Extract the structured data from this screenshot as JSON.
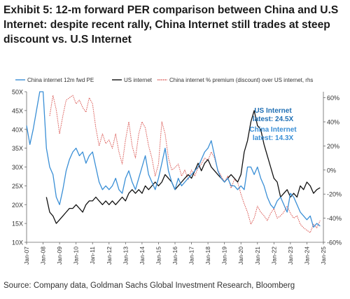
{
  "title": "Exhibit 5: 12-m forward PER comparison between China and U.S Internet: despite recent rally, China Internet still trades at steep discount vs. U.S Internet",
  "source": "Source: Company data, Goldman Sachs Global Investment Research, Bloomberg",
  "colors": {
    "china": "#3a8fd6",
    "us": "#111111",
    "premium": "#d9534f",
    "axis": "#666666"
  },
  "chart_data": {
    "type": "line",
    "title": "",
    "x_ticks": [
      "Jan-07",
      "Jan-08",
      "Jan-09",
      "Jan-10",
      "Jan-11",
      "Jan-12",
      "Jan-13",
      "Jan-14",
      "Jan-15",
      "Jan-16",
      "Jan-17",
      "Jan-18",
      "Jan-19",
      "Jan-20",
      "Jan-21",
      "Jan-22",
      "Jan-23",
      "Jan-24",
      "Jan-25"
    ],
    "xlim": [
      2007.0,
      2025.0
    ],
    "y_left": {
      "ticks": [
        "10X",
        "15X",
        "20X",
        "25X",
        "30X",
        "35X",
        "40X",
        "45X",
        "50X"
      ],
      "range": [
        10,
        50
      ]
    },
    "y_right": {
      "ticks": [
        "-60%",
        "-40%",
        "-20%",
        "0%",
        "20%",
        "40%",
        "60%"
      ],
      "range": [
        -60,
        65
      ]
    },
    "legend": {
      "position": "top",
      "entries": [
        "China internet 12m fwd PE",
        "US internet",
        "China internet % premium (discount) over US internet, rhs"
      ]
    },
    "annotations": [
      {
        "text": "US Internet",
        "color": "#1f6fb4"
      },
      {
        "text": "latest: 24.5X",
        "color": "#1f6fb4"
      },
      {
        "text": "China Internet",
        "color": "#3a8fd6"
      },
      {
        "text": "latest: 14.3X",
        "color": "#3a8fd6"
      }
    ],
    "series": [
      {
        "name": "China internet 12m fwd PE",
        "axis": "left",
        "style": "solid",
        "x": [
          2007.0,
          2007.2,
          2007.4,
          2007.6,
          2007.8,
          2008.0,
          2008.2,
          2008.4,
          2008.6,
          2008.8,
          2009.0,
          2009.2,
          2009.4,
          2009.6,
          2009.8,
          2010.0,
          2010.2,
          2010.4,
          2010.6,
          2010.8,
          2011.0,
          2011.2,
          2011.4,
          2011.6,
          2011.8,
          2012.0,
          2012.2,
          2012.4,
          2012.6,
          2012.8,
          2013.0,
          2013.2,
          2013.4,
          2013.6,
          2013.8,
          2014.0,
          2014.2,
          2014.4,
          2014.6,
          2014.8,
          2015.0,
          2015.2,
          2015.4,
          2015.6,
          2015.8,
          2016.0,
          2016.2,
          2016.4,
          2016.6,
          2016.8,
          2017.0,
          2017.2,
          2017.4,
          2017.6,
          2017.8,
          2018.0,
          2018.2,
          2018.4,
          2018.6,
          2018.8,
          2019.0,
          2019.2,
          2019.4,
          2019.6,
          2019.8,
          2020.0,
          2020.2,
          2020.4,
          2020.6,
          2020.8,
          2021.0,
          2021.2,
          2021.4,
          2021.6,
          2021.8,
          2022.0,
          2022.2,
          2022.4,
          2022.6,
          2022.8,
          2023.0,
          2023.2,
          2023.4,
          2023.6,
          2023.8,
          2024.0,
          2024.2,
          2024.4,
          2024.6,
          2024.8
        ],
        "values": [
          41,
          36,
          40,
          45,
          50,
          50,
          35,
          30,
          28,
          22,
          20,
          24,
          29,
          32,
          34,
          35,
          33,
          34,
          31,
          33,
          34,
          30,
          26,
          24,
          25,
          24,
          25,
          27,
          24,
          23,
          27,
          29,
          26,
          24,
          27,
          30,
          33,
          28,
          26,
          24,
          27,
          31,
          35,
          29,
          26,
          24,
          27,
          25,
          26,
          27,
          28,
          29,
          30,
          32,
          34,
          35,
          37,
          33,
          29,
          27,
          26,
          27,
          25,
          25,
          24,
          25,
          24,
          30,
          30,
          28,
          30,
          27,
          25,
          22,
          20,
          19,
          21,
          22,
          20,
          18,
          23,
          22,
          20,
          18,
          17,
          16,
          17,
          14,
          15,
          14.3
        ]
      },
      {
        "name": "US internet",
        "axis": "left",
        "style": "solid",
        "x": [
          2008.2,
          2008.4,
          2008.6,
          2008.8,
          2009.0,
          2009.2,
          2009.4,
          2009.6,
          2009.8,
          2010.0,
          2010.2,
          2010.4,
          2010.6,
          2010.8,
          2011.0,
          2011.2,
          2011.4,
          2011.6,
          2011.8,
          2012.0,
          2012.2,
          2012.4,
          2012.6,
          2012.8,
          2013.0,
          2013.2,
          2013.4,
          2013.6,
          2013.8,
          2014.0,
          2014.2,
          2014.4,
          2014.6,
          2014.8,
          2015.0,
          2015.2,
          2015.4,
          2015.6,
          2015.8,
          2016.0,
          2016.2,
          2016.4,
          2016.6,
          2016.8,
          2017.0,
          2017.2,
          2017.4,
          2017.6,
          2017.8,
          2018.0,
          2018.2,
          2018.4,
          2018.6,
          2018.8,
          2019.0,
          2019.2,
          2019.4,
          2019.6,
          2019.8,
          2020.0,
          2020.2,
          2020.4,
          2020.6,
          2020.8,
          2021.0,
          2021.2,
          2021.4,
          2021.6,
          2021.8,
          2022.0,
          2022.2,
          2022.4,
          2022.6,
          2022.8,
          2023.0,
          2023.2,
          2023.4,
          2023.6,
          2023.8,
          2024.0,
          2024.2,
          2024.4,
          2024.6,
          2024.8
        ],
        "values": [
          22,
          18,
          17,
          15,
          16,
          17,
          18,
          19,
          19,
          20,
          19,
          18,
          20,
          21,
          21,
          22,
          21,
          20,
          21,
          20,
          21,
          20,
          21,
          22,
          21,
          23,
          24,
          23,
          24,
          23,
          25,
          24,
          25,
          26,
          25,
          26,
          28,
          27,
          26,
          24,
          25,
          26,
          27,
          28,
          27,
          29,
          31,
          29,
          31,
          32,
          30,
          29,
          28,
          27,
          26,
          27,
          28,
          27,
          26,
          28,
          34,
          37,
          42,
          45,
          41,
          40,
          36,
          33,
          30,
          27,
          26,
          22,
          23,
          24,
          22,
          23,
          22,
          25,
          24,
          26,
          25,
          23,
          24,
          24.5
        ]
      },
      {
        "name": "China internet % premium (discount) over US internet, rhs",
        "axis": "right",
        "style": "dotted",
        "x": [
          2008.4,
          2008.6,
          2008.8,
          2009.0,
          2009.2,
          2009.4,
          2009.6,
          2009.8,
          2010.0,
          2010.2,
          2010.4,
          2010.6,
          2010.8,
          2011.0,
          2011.2,
          2011.4,
          2011.6,
          2011.8,
          2012.0,
          2012.2,
          2012.4,
          2012.6,
          2012.8,
          2013.0,
          2013.2,
          2013.4,
          2013.6,
          2013.8,
          2014.0,
          2014.2,
          2014.4,
          2014.6,
          2014.8,
          2015.0,
          2015.2,
          2015.4,
          2015.6,
          2015.8,
          2016.0,
          2016.2,
          2016.4,
          2016.6,
          2016.8,
          2017.0,
          2017.2,
          2017.4,
          2017.6,
          2017.8,
          2018.0,
          2018.2,
          2018.4,
          2018.6,
          2018.8,
          2019.0,
          2019.2,
          2019.4,
          2019.6,
          2019.8,
          2020.0,
          2020.2,
          2020.4,
          2020.6,
          2020.8,
          2021.0,
          2021.2,
          2021.4,
          2021.6,
          2021.8,
          2022.0,
          2022.2,
          2022.4,
          2022.6,
          2022.8,
          2023.0,
          2023.2,
          2023.4,
          2023.6,
          2023.8,
          2024.0,
          2024.2,
          2024.4,
          2024.6,
          2024.8
        ],
        "values": [
          45,
          62,
          50,
          30,
          45,
          58,
          60,
          62,
          55,
          58,
          52,
          48,
          60,
          55,
          35,
          20,
          30,
          22,
          25,
          18,
          30,
          15,
          5,
          25,
          40,
          20,
          10,
          30,
          40,
          35,
          20,
          10,
          -5,
          5,
          40,
          30,
          10,
          0,
          2,
          5,
          -5,
          0,
          -8,
          0,
          -5,
          2,
          5,
          10,
          8,
          15,
          10,
          0,
          -5,
          -10,
          -5,
          -15,
          -8,
          -10,
          -20,
          -28,
          -35,
          -45,
          -40,
          -30,
          -35,
          -38,
          -42,
          -36,
          -32,
          -40,
          -38,
          -35,
          -30,
          -36,
          -40,
          -38,
          -45,
          -48,
          -50,
          -52,
          -45,
          -48,
          -42
        ]
      }
    ]
  }
}
